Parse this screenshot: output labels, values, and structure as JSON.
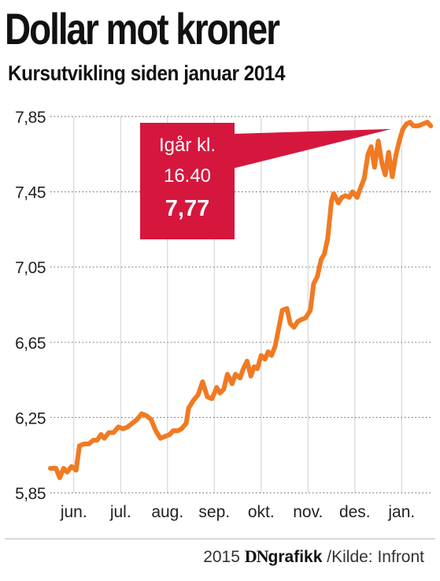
{
  "title": "Dollar mot kroner",
  "subtitle": "Kursutvikling siden januar 2014",
  "callout": {
    "line1": "Igår kl.",
    "line2": "16.40",
    "value": "7,77"
  },
  "footer": {
    "year": "2015",
    "brand": "DN",
    "brand_suffix": "grafikk",
    "source": "/Kilde: Infront"
  },
  "colors": {
    "line": "#f07a22",
    "callout": "#d5173e",
    "grid": "#777777"
  },
  "chart_data": {
    "type": "line",
    "title": "Dollar mot kroner",
    "subtitle": "Kursutvikling siden januar 2014",
    "xlabel": "",
    "ylabel": "",
    "yticks": [
      5.85,
      6.25,
      6.65,
      7.05,
      7.45,
      7.85
    ],
    "ytick_labels": [
      "5,85",
      "6,25",
      "6,65",
      "7,05",
      "7,45",
      "7,85"
    ],
    "ylim": [
      5.85,
      7.85
    ],
    "xlim": [
      0,
      8.15
    ],
    "grid": "horizontal dotted",
    "month_ticks": [
      {
        "label": "jun.",
        "x": 0.5
      },
      {
        "label": "jul.",
        "x": 1.5
      },
      {
        "label": "aug.",
        "x": 2.5
      },
      {
        "label": "sep.",
        "x": 3.5
      },
      {
        "label": "okt.",
        "x": 4.5
      },
      {
        "label": "nov.",
        "x": 5.5
      },
      {
        "label": "des.",
        "x": 6.5
      },
      {
        "label": "jan.",
        "x": 7.5
      }
    ],
    "series": [
      {
        "x": [
          0.0,
          0.12,
          0.2,
          0.28,
          0.36,
          0.45,
          0.55,
          0.62,
          0.72,
          0.82,
          0.92,
          1.0,
          1.08,
          1.15,
          1.25,
          1.35,
          1.45,
          1.55,
          1.65,
          1.75,
          1.85,
          1.95,
          2.05,
          2.15,
          2.25,
          2.35,
          2.45,
          2.55,
          2.62,
          2.72,
          2.8,
          2.9,
          2.95,
          3.05,
          3.15,
          3.25,
          3.35,
          3.45,
          3.55,
          3.62,
          3.7,
          3.78,
          3.88,
          3.95,
          4.05,
          4.12,
          4.2,
          4.28,
          4.35,
          4.42,
          4.5,
          4.58,
          4.65,
          4.72,
          4.8,
          4.88,
          4.95,
          5.05,
          5.12,
          5.2,
          5.28,
          5.35,
          5.45,
          5.55,
          5.62,
          5.7,
          5.78,
          5.85,
          5.92,
          6.0,
          6.05,
          6.15,
          6.22,
          6.3,
          6.38,
          6.45,
          6.55,
          6.62,
          6.7,
          6.78,
          6.85,
          6.92,
          7.0,
          7.08,
          7.15,
          7.22,
          7.3,
          7.38,
          7.45,
          7.52,
          7.6,
          7.68,
          7.75,
          7.85,
          7.95,
          8.05,
          8.12
        ],
        "y": [
          5.98,
          5.98,
          5.93,
          5.98,
          5.96,
          5.99,
          5.97,
          6.1,
          6.11,
          6.11,
          6.13,
          6.13,
          6.16,
          6.14,
          6.17,
          6.17,
          6.2,
          6.19,
          6.2,
          6.22,
          6.24,
          6.27,
          6.26,
          6.24,
          6.18,
          6.14,
          6.15,
          6.16,
          6.18,
          6.18,
          6.19,
          6.22,
          6.3,
          6.34,
          6.37,
          6.44,
          6.36,
          6.35,
          6.41,
          6.38,
          6.4,
          6.48,
          6.43,
          6.48,
          6.46,
          6.51,
          6.55,
          6.47,
          6.52,
          6.51,
          6.58,
          6.56,
          6.6,
          6.58,
          6.63,
          6.73,
          6.82,
          6.83,
          6.75,
          6.73,
          6.76,
          6.77,
          6.78,
          6.82,
          6.96,
          7.0,
          7.09,
          7.12,
          7.2,
          7.4,
          7.44,
          7.39,
          7.42,
          7.43,
          7.42,
          7.45,
          7.42,
          7.47,
          7.52,
          7.65,
          7.69,
          7.58,
          7.72,
          7.6,
          7.54,
          7.66,
          7.53,
          7.65,
          7.72,
          7.78,
          7.81,
          7.82,
          7.8,
          7.8,
          7.81,
          7.82,
          7.8
        ]
      }
    ]
  }
}
